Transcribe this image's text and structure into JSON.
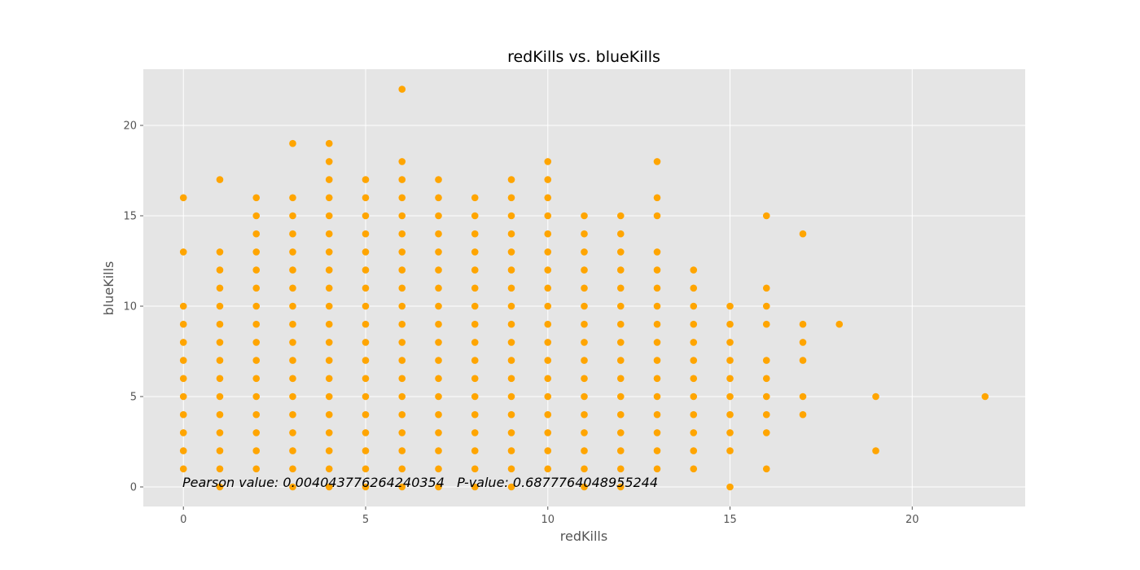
{
  "chart_data": {
    "type": "scatter",
    "title": "redKills vs. blueKills",
    "xlabel": "redKills",
    "ylabel": "blueKills",
    "xlim": [
      -1.1,
      23.1
    ],
    "ylim": [
      -1.1,
      23.1
    ],
    "xticks": [
      0,
      5,
      10,
      15,
      20
    ],
    "yticks": [
      0,
      5,
      10,
      15,
      20
    ],
    "grid": true,
    "annotation": "Pearson value: 0.004043776264240354   P-value: 0.6877764048955244",
    "series": [
      {
        "color": "#ffa500",
        "points": [
          [
            0,
            1
          ],
          [
            0,
            2
          ],
          [
            0,
            3
          ],
          [
            0,
            4
          ],
          [
            0,
            5
          ],
          [
            0,
            6
          ],
          [
            0,
            7
          ],
          [
            0,
            8
          ],
          [
            0,
            9
          ],
          [
            0,
            10
          ],
          [
            0,
            13
          ],
          [
            0,
            16
          ],
          [
            1,
            0
          ],
          [
            1,
            1
          ],
          [
            1,
            2
          ],
          [
            1,
            3
          ],
          [
            1,
            4
          ],
          [
            1,
            5
          ],
          [
            1,
            6
          ],
          [
            1,
            7
          ],
          [
            1,
            8
          ],
          [
            1,
            9
          ],
          [
            1,
            10
          ],
          [
            1,
            11
          ],
          [
            1,
            12
          ],
          [
            1,
            13
          ],
          [
            1,
            17
          ],
          [
            2,
            1
          ],
          [
            2,
            2
          ],
          [
            2,
            3
          ],
          [
            2,
            4
          ],
          [
            2,
            5
          ],
          [
            2,
            6
          ],
          [
            2,
            7
          ],
          [
            2,
            8
          ],
          [
            2,
            9
          ],
          [
            2,
            10
          ],
          [
            2,
            11
          ],
          [
            2,
            12
          ],
          [
            2,
            13
          ],
          [
            2,
            14
          ],
          [
            2,
            15
          ],
          [
            2,
            16
          ],
          [
            3,
            0
          ],
          [
            3,
            1
          ],
          [
            3,
            2
          ],
          [
            3,
            3
          ],
          [
            3,
            4
          ],
          [
            3,
            5
          ],
          [
            3,
            6
          ],
          [
            3,
            7
          ],
          [
            3,
            8
          ],
          [
            3,
            9
          ],
          [
            3,
            10
          ],
          [
            3,
            11
          ],
          [
            3,
            12
          ],
          [
            3,
            13
          ],
          [
            3,
            14
          ],
          [
            3,
            15
          ],
          [
            3,
            16
          ],
          [
            3,
            19
          ],
          [
            4,
            0
          ],
          [
            4,
            1
          ],
          [
            4,
            2
          ],
          [
            4,
            3
          ],
          [
            4,
            4
          ],
          [
            4,
            5
          ],
          [
            4,
            6
          ],
          [
            4,
            7
          ],
          [
            4,
            8
          ],
          [
            4,
            9
          ],
          [
            4,
            10
          ],
          [
            4,
            11
          ],
          [
            4,
            12
          ],
          [
            4,
            13
          ],
          [
            4,
            14
          ],
          [
            4,
            15
          ],
          [
            4,
            16
          ],
          [
            4,
            17
          ],
          [
            4,
            18
          ],
          [
            4,
            19
          ],
          [
            5,
            0
          ],
          [
            5,
            1
          ],
          [
            5,
            2
          ],
          [
            5,
            3
          ],
          [
            5,
            4
          ],
          [
            5,
            5
          ],
          [
            5,
            6
          ],
          [
            5,
            7
          ],
          [
            5,
            8
          ],
          [
            5,
            9
          ],
          [
            5,
            10
          ],
          [
            5,
            11
          ],
          [
            5,
            12
          ],
          [
            5,
            13
          ],
          [
            5,
            14
          ],
          [
            5,
            15
          ],
          [
            5,
            16
          ],
          [
            5,
            17
          ],
          [
            6,
            0
          ],
          [
            6,
            1
          ],
          [
            6,
            2
          ],
          [
            6,
            3
          ],
          [
            6,
            4
          ],
          [
            6,
            5
          ],
          [
            6,
            6
          ],
          [
            6,
            7
          ],
          [
            6,
            8
          ],
          [
            6,
            9
          ],
          [
            6,
            10
          ],
          [
            6,
            11
          ],
          [
            6,
            12
          ],
          [
            6,
            13
          ],
          [
            6,
            14
          ],
          [
            6,
            15
          ],
          [
            6,
            16
          ],
          [
            6,
            17
          ],
          [
            6,
            18
          ],
          [
            6,
            22
          ],
          [
            7,
            0
          ],
          [
            7,
            1
          ],
          [
            7,
            2
          ],
          [
            7,
            3
          ],
          [
            7,
            4
          ],
          [
            7,
            5
          ],
          [
            7,
            6
          ],
          [
            7,
            7
          ],
          [
            7,
            8
          ],
          [
            7,
            9
          ],
          [
            7,
            10
          ],
          [
            7,
            11
          ],
          [
            7,
            12
          ],
          [
            7,
            13
          ],
          [
            7,
            14
          ],
          [
            7,
            15
          ],
          [
            7,
            16
          ],
          [
            7,
            17
          ],
          [
            8,
            0
          ],
          [
            8,
            1
          ],
          [
            8,
            2
          ],
          [
            8,
            3
          ],
          [
            8,
            4
          ],
          [
            8,
            5
          ],
          [
            8,
            6
          ],
          [
            8,
            7
          ],
          [
            8,
            8
          ],
          [
            8,
            9
          ],
          [
            8,
            10
          ],
          [
            8,
            11
          ],
          [
            8,
            12
          ],
          [
            8,
            13
          ],
          [
            8,
            14
          ],
          [
            8,
            15
          ],
          [
            8,
            16
          ],
          [
            9,
            0
          ],
          [
            9,
            1
          ],
          [
            9,
            2
          ],
          [
            9,
            3
          ],
          [
            9,
            4
          ],
          [
            9,
            5
          ],
          [
            9,
            6
          ],
          [
            9,
            7
          ],
          [
            9,
            8
          ],
          [
            9,
            9
          ],
          [
            9,
            10
          ],
          [
            9,
            11
          ],
          [
            9,
            12
          ],
          [
            9,
            13
          ],
          [
            9,
            14
          ],
          [
            9,
            15
          ],
          [
            9,
            16
          ],
          [
            9,
            17
          ],
          [
            10,
            1
          ],
          [
            10,
            2
          ],
          [
            10,
            3
          ],
          [
            10,
            4
          ],
          [
            10,
            5
          ],
          [
            10,
            6
          ],
          [
            10,
            7
          ],
          [
            10,
            8
          ],
          [
            10,
            9
          ],
          [
            10,
            10
          ],
          [
            10,
            11
          ],
          [
            10,
            12
          ],
          [
            10,
            13
          ],
          [
            10,
            14
          ],
          [
            10,
            15
          ],
          [
            10,
            16
          ],
          [
            10,
            17
          ],
          [
            10,
            18
          ],
          [
            11,
            0
          ],
          [
            11,
            1
          ],
          [
            11,
            2
          ],
          [
            11,
            3
          ],
          [
            11,
            4
          ],
          [
            11,
            5
          ],
          [
            11,
            6
          ],
          [
            11,
            7
          ],
          [
            11,
            8
          ],
          [
            11,
            9
          ],
          [
            11,
            10
          ],
          [
            11,
            11
          ],
          [
            11,
            12
          ],
          [
            11,
            13
          ],
          [
            11,
            14
          ],
          [
            11,
            15
          ],
          [
            12,
            0
          ],
          [
            12,
            1
          ],
          [
            12,
            2
          ],
          [
            12,
            3
          ],
          [
            12,
            4
          ],
          [
            12,
            5
          ],
          [
            12,
            6
          ],
          [
            12,
            7
          ],
          [
            12,
            8
          ],
          [
            12,
            9
          ],
          [
            12,
            10
          ],
          [
            12,
            11
          ],
          [
            12,
            12
          ],
          [
            12,
            13
          ],
          [
            12,
            14
          ],
          [
            12,
            15
          ],
          [
            13,
            1
          ],
          [
            13,
            2
          ],
          [
            13,
            3
          ],
          [
            13,
            4
          ],
          [
            13,
            5
          ],
          [
            13,
            6
          ],
          [
            13,
            7
          ],
          [
            13,
            8
          ],
          [
            13,
            9
          ],
          [
            13,
            10
          ],
          [
            13,
            11
          ],
          [
            13,
            12
          ],
          [
            13,
            13
          ],
          [
            13,
            15
          ],
          [
            13,
            16
          ],
          [
            13,
            18
          ],
          [
            14,
            1
          ],
          [
            14,
            2
          ],
          [
            14,
            3
          ],
          [
            14,
            4
          ],
          [
            14,
            5
          ],
          [
            14,
            6
          ],
          [
            14,
            7
          ],
          [
            14,
            8
          ],
          [
            14,
            9
          ],
          [
            14,
            10
          ],
          [
            14,
            11
          ],
          [
            14,
            12
          ],
          [
            15,
            0
          ],
          [
            15,
            2
          ],
          [
            15,
            3
          ],
          [
            15,
            4
          ],
          [
            15,
            5
          ],
          [
            15,
            6
          ],
          [
            15,
            7
          ],
          [
            15,
            8
          ],
          [
            15,
            9
          ],
          [
            15,
            10
          ],
          [
            16,
            1
          ],
          [
            16,
            3
          ],
          [
            16,
            4
          ],
          [
            16,
            5
          ],
          [
            16,
            6
          ],
          [
            16,
            7
          ],
          [
            16,
            9
          ],
          [
            16,
            10
          ],
          [
            16,
            11
          ],
          [
            16,
            15
          ],
          [
            17,
            4
          ],
          [
            17,
            5
          ],
          [
            17,
            7
          ],
          [
            17,
            8
          ],
          [
            17,
            9
          ],
          [
            17,
            14
          ],
          [
            18,
            9
          ],
          [
            19,
            2
          ],
          [
            19,
            5
          ],
          [
            22,
            5
          ]
        ]
      }
    ]
  }
}
